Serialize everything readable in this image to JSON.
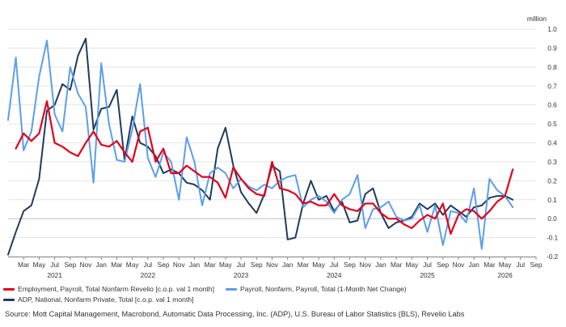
{
  "chart_data": {
    "type": "line",
    "unit_label": "million",
    "ylim": [
      -0.2,
      1.0
    ],
    "yticks": [
      -0.2,
      -0.1,
      0.0,
      0.1,
      0.2,
      0.3,
      0.4,
      0.5,
      0.6,
      0.7,
      0.8,
      0.9,
      1.0
    ],
    "ytick_labels": [
      "-0.2",
      "-0.1",
      "0.0",
      "0.1",
      "0.2",
      "0.3",
      "0.4",
      "0.5",
      "0.6",
      "0.7",
      "0.8",
      "0.9",
      "1.0"
    ],
    "grid": true,
    "legend_position": "bottom",
    "x_start": "2021-01",
    "x_end": "2026-09",
    "month_ticks": [
      {
        "date": "2021-03",
        "label": "Mar"
      },
      {
        "date": "2021-05",
        "label": "May"
      },
      {
        "date": "2021-07",
        "label": "Jul"
      },
      {
        "date": "2021-09",
        "label": "Sep"
      },
      {
        "date": "2021-11",
        "label": "Nov"
      },
      {
        "date": "2022-01",
        "label": "Jan"
      },
      {
        "date": "2022-03",
        "label": "Mar"
      },
      {
        "date": "2022-05",
        "label": "May"
      },
      {
        "date": "2022-07",
        "label": "Jul"
      },
      {
        "date": "2022-09",
        "label": "Sep"
      },
      {
        "date": "2022-11",
        "label": "Nov"
      },
      {
        "date": "2023-01",
        "label": "Jan"
      },
      {
        "date": "2023-03",
        "label": "Mar"
      },
      {
        "date": "2023-05",
        "label": "May"
      },
      {
        "date": "2023-07",
        "label": "Jul"
      },
      {
        "date": "2023-09",
        "label": "Sep"
      },
      {
        "date": "2023-11",
        "label": "Nov"
      },
      {
        "date": "2024-01",
        "label": "Jan"
      },
      {
        "date": "2024-03",
        "label": "Mar"
      },
      {
        "date": "2024-05",
        "label": "May"
      },
      {
        "date": "2024-07",
        "label": "Jul"
      },
      {
        "date": "2024-09",
        "label": "Sep"
      },
      {
        "date": "2024-11",
        "label": "Nov"
      },
      {
        "date": "2025-01",
        "label": "Jan"
      },
      {
        "date": "2025-03",
        "label": "Mar"
      },
      {
        "date": "2025-05",
        "label": "May"
      },
      {
        "date": "2025-07",
        "label": "Jul"
      },
      {
        "date": "2025-09",
        "label": "Sep"
      },
      {
        "date": "2025-11",
        "label": "Nov"
      },
      {
        "date": "2026-01",
        "label": "Jan"
      },
      {
        "date": "2026-03",
        "label": "Mar"
      },
      {
        "date": "2026-05",
        "label": "May"
      },
      {
        "date": "2026-07",
        "label": "Jul"
      },
      {
        "date": "2026-09",
        "label": "Sep"
      }
    ],
    "year_labels": [
      {
        "date": "2021-07",
        "label": "2021"
      },
      {
        "date": "2022-07",
        "label": "2022"
      },
      {
        "date": "2023-07",
        "label": "2023"
      },
      {
        "date": "2024-07",
        "label": "2024"
      },
      {
        "date": "2025-07",
        "label": "2025"
      },
      {
        "date": "2026-05",
        "label": "2026"
      }
    ],
    "series": [
      {
        "name": "Employment, Payroll, Total Nonfarm Revelio [c.o.p. val 1 month]",
        "color": "#e3001b",
        "points": [
          [
            "2021-02",
            0.37
          ],
          [
            "2021-03",
            0.45
          ],
          [
            "2021-04",
            0.41
          ],
          [
            "2021-05",
            0.45
          ],
          [
            "2021-06",
            0.62
          ],
          [
            "2021-07",
            0.4
          ],
          [
            "2021-08",
            0.38
          ],
          [
            "2021-09",
            0.35
          ],
          [
            "2021-10",
            0.33
          ],
          [
            "2021-11",
            0.4
          ],
          [
            "2021-12",
            0.46
          ],
          [
            "2022-01",
            0.39
          ],
          [
            "2022-02",
            0.38
          ],
          [
            "2022-03",
            0.41
          ],
          [
            "2022-04",
            0.35
          ],
          [
            "2022-05",
            0.3
          ],
          [
            "2022-06",
            0.46
          ],
          [
            "2022-07",
            0.48
          ],
          [
            "2022-08",
            0.3
          ],
          [
            "2022-09",
            0.37
          ],
          [
            "2022-10",
            0.24
          ],
          [
            "2022-11",
            0.24
          ],
          [
            "2022-12",
            0.28
          ],
          [
            "2023-01",
            0.25
          ],
          [
            "2023-02",
            0.22
          ],
          [
            "2023-03",
            0.22
          ],
          [
            "2023-04",
            0.19
          ],
          [
            "2023-05",
            0.11
          ],
          [
            "2023-06",
            0.27
          ],
          [
            "2023-07",
            0.21
          ],
          [
            "2023-08",
            0.16
          ],
          [
            "2023-09",
            0.13
          ],
          [
            "2023-10",
            0.12
          ],
          [
            "2023-11",
            0.3
          ],
          [
            "2023-12",
            0.16
          ],
          [
            "2024-01",
            0.15
          ],
          [
            "2024-02",
            0.13
          ],
          [
            "2024-03",
            0.08
          ],
          [
            "2024-04",
            0.09
          ],
          [
            "2024-05",
            0.07
          ],
          [
            "2024-06",
            0.07
          ],
          [
            "2024-07",
            0.13
          ],
          [
            "2024-08",
            0.07
          ],
          [
            "2024-09",
            0.05
          ],
          [
            "2024-10",
            0.04
          ],
          [
            "2024-11",
            0.08
          ],
          [
            "2024-12",
            0.08
          ],
          [
            "2025-01",
            0.03
          ],
          [
            "2025-02",
            0.0
          ],
          [
            "2025-03",
            0.0
          ],
          [
            "2025-04",
            -0.03
          ],
          [
            "2025-05",
            -0.05
          ],
          [
            "2025-06",
            -0.01
          ],
          [
            "2025-07",
            0.02
          ],
          [
            "2025-08",
            0.0
          ],
          [
            "2025-09",
            0.08
          ],
          [
            "2025-10",
            -0.08
          ],
          [
            "2025-11",
            0.02
          ],
          [
            "2025-12",
            0.05
          ],
          [
            "2026-01",
            0.04
          ],
          [
            "2026-02",
            0.0
          ],
          [
            "2026-03",
            0.04
          ],
          [
            "2026-04",
            0.09
          ],
          [
            "2026-05",
            0.12
          ],
          [
            "2026-06",
            0.26
          ]
        ]
      },
      {
        "name": "Payroll, Nonfarm, Payroll, Total (1-Month Net Change)",
        "color": "#5b9ee8",
        "points": [
          [
            "2021-01",
            0.52
          ],
          [
            "2021-02",
            0.85
          ],
          [
            "2021-03",
            0.36
          ],
          [
            "2021-04",
            0.46
          ],
          [
            "2021-05",
            0.75
          ],
          [
            "2021-06",
            0.94
          ],
          [
            "2021-07",
            0.55
          ],
          [
            "2021-08",
            0.46
          ],
          [
            "2021-09",
            0.8
          ],
          [
            "2021-10",
            0.66
          ],
          [
            "2021-11",
            0.59
          ],
          [
            "2021-12",
            0.19
          ],
          [
            "2022-01",
            0.82
          ],
          [
            "2022-02",
            0.5
          ],
          [
            "2022-03",
            0.31
          ],
          [
            "2022-04",
            0.3
          ],
          [
            "2022-05",
            0.47
          ],
          [
            "2022-06",
            0.71
          ],
          [
            "2022-07",
            0.32
          ],
          [
            "2022-08",
            0.22
          ],
          [
            "2022-09",
            0.35
          ],
          [
            "2022-10",
            0.3
          ],
          [
            "2022-11",
            0.1
          ],
          [
            "2022-12",
            0.43
          ],
          [
            "2023-01",
            0.3
          ],
          [
            "2023-02",
            0.07
          ],
          [
            "2023-03",
            0.24
          ],
          [
            "2023-04",
            0.27
          ],
          [
            "2023-05",
            0.24
          ],
          [
            "2023-06",
            0.16
          ],
          [
            "2023-07",
            0.21
          ],
          [
            "2023-08",
            0.17
          ],
          [
            "2023-09",
            0.15
          ],
          [
            "2023-10",
            0.18
          ],
          [
            "2023-11",
            0.16
          ],
          [
            "2023-12",
            0.2
          ],
          [
            "2024-01",
            0.22
          ],
          [
            "2024-02",
            0.23
          ],
          [
            "2024-03",
            0.06
          ],
          [
            "2024-04",
            0.1
          ],
          [
            "2024-05",
            0.12
          ],
          [
            "2024-06",
            0.09
          ],
          [
            "2024-07",
            0.03
          ],
          [
            "2024-08",
            0.1
          ],
          [
            "2024-09",
            0.13
          ],
          [
            "2024-10",
            0.23
          ],
          [
            "2024-11",
            -0.05
          ],
          [
            "2024-12",
            0.05
          ],
          [
            "2025-01",
            0.06
          ],
          [
            "2025-02",
            0.09
          ],
          [
            "2025-03",
            0.01
          ],
          [
            "2025-04",
            -0.01
          ],
          [
            "2025-05",
            0.0
          ],
          [
            "2025-06",
            0.07
          ],
          [
            "2025-07",
            -0.07
          ],
          [
            "2025-08",
            0.07
          ],
          [
            "2025-09",
            -0.14
          ],
          [
            "2025-10",
            0.04
          ],
          [
            "2025-11",
            0.03
          ],
          [
            "2025-12",
            -0.02
          ],
          [
            "2026-01",
            0.16
          ],
          [
            "2026-02",
            -0.16
          ],
          [
            "2026-03",
            0.21
          ],
          [
            "2026-04",
            0.15
          ],
          [
            "2026-05",
            0.12
          ],
          [
            "2026-06",
            0.06
          ]
        ]
      },
      {
        "name": "ADP, National, Nonfarm Private, Total [c.o.p. val 1 month]",
        "color": "#1f3a5f",
        "points": [
          [
            "2021-01",
            -0.19
          ],
          [
            "2021-02",
            -0.07
          ],
          [
            "2021-03",
            0.04
          ],
          [
            "2021-04",
            0.07
          ],
          [
            "2021-05",
            0.21
          ],
          [
            "2021-06",
            0.57
          ],
          [
            "2021-07",
            0.6
          ],
          [
            "2021-08",
            0.71
          ],
          [
            "2021-09",
            0.68
          ],
          [
            "2021-10",
            0.86
          ],
          [
            "2021-11",
            0.95
          ],
          [
            "2021-12",
            0.47
          ],
          [
            "2022-01",
            0.58
          ],
          [
            "2022-02",
            0.59
          ],
          [
            "2022-03",
            0.68
          ],
          [
            "2022-04",
            0.31
          ],
          [
            "2022-05",
            0.54
          ],
          [
            "2022-06",
            0.4
          ],
          [
            "2022-07",
            0.38
          ],
          [
            "2022-08",
            0.33
          ],
          [
            "2022-09",
            0.24
          ],
          [
            "2022-10",
            0.26
          ],
          [
            "2022-11",
            0.24
          ],
          [
            "2022-12",
            0.19
          ],
          [
            "2023-01",
            0.18
          ],
          [
            "2023-02",
            0.15
          ],
          [
            "2023-03",
            0.1
          ],
          [
            "2023-04",
            0.37
          ],
          [
            "2023-05",
            0.48
          ],
          [
            "2023-06",
            0.28
          ],
          [
            "2023-07",
            0.14
          ],
          [
            "2023-08",
            0.08
          ],
          [
            "2023-09",
            0.03
          ],
          [
            "2023-10",
            0.13
          ],
          [
            "2023-11",
            0.28
          ],
          [
            "2023-12",
            0.25
          ],
          [
            "2024-01",
            -0.11
          ],
          [
            "2024-02",
            -0.1
          ],
          [
            "2024-03",
            0.08
          ],
          [
            "2024-04",
            0.2
          ],
          [
            "2024-05",
            0.1
          ],
          [
            "2024-06",
            0.12
          ],
          [
            "2024-07",
            0.04
          ],
          [
            "2024-08",
            0.09
          ],
          [
            "2024-09",
            -0.02
          ],
          [
            "2024-10",
            -0.01
          ],
          [
            "2024-11",
            0.13
          ],
          [
            "2024-12",
            0.16
          ],
          [
            "2025-01",
            0.03
          ],
          [
            "2025-02",
            -0.05
          ],
          [
            "2025-03",
            -0.02
          ],
          [
            "2025-04",
            -0.01
          ],
          [
            "2025-05",
            0.01
          ],
          [
            "2025-06",
            0.08
          ],
          [
            "2025-07",
            0.05
          ],
          [
            "2025-08",
            0.08
          ],
          [
            "2025-09",
            0.02
          ],
          [
            "2025-10",
            0.07
          ],
          [
            "2025-11",
            0.04
          ],
          [
            "2025-12",
            0.01
          ],
          [
            "2026-01",
            0.06
          ],
          [
            "2026-02",
            0.07
          ],
          [
            "2026-03",
            0.11
          ],
          [
            "2026-04",
            0.12
          ],
          [
            "2026-05",
            0.12
          ],
          [
            "2026-06",
            0.1
          ]
        ]
      }
    ]
  },
  "source_text": "Source: Mott Capital Management, Macrobond, Automatic Data Processing, Inc. (ADP), U.S. Bureau of Labor Statistics (BLS), Revelio Labs"
}
